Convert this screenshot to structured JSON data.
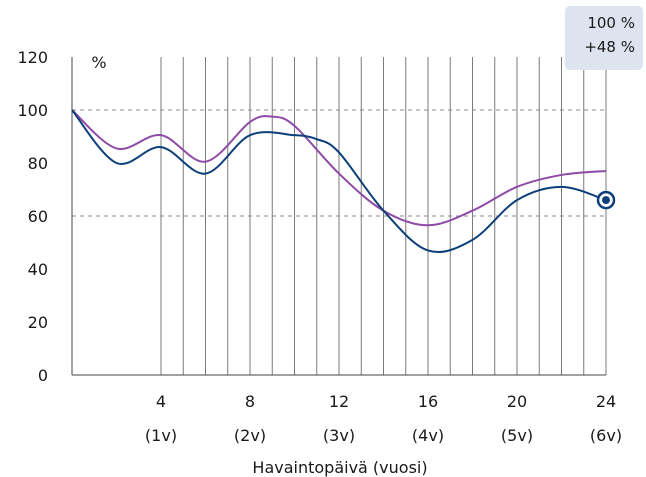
{
  "chart_data": {
    "type": "line",
    "ylabel": "%",
    "xlabel": "Havaintopäivä (vuosi)",
    "ylim": [
      0,
      120
    ],
    "xlim": [
      0,
      24
    ],
    "y_ticks": [
      "0",
      "20",
      "40",
      "60",
      "80",
      "100",
      "120"
    ],
    "x_ticks": [
      {
        "value": 4,
        "label": "4",
        "sublabel": "(1v)"
      },
      {
        "value": 8,
        "label": "8",
        "sublabel": "(2v)"
      },
      {
        "value": 12,
        "label": "12",
        "sublabel": "(3v)"
      },
      {
        "value": 16,
        "label": "16",
        "sublabel": "(4v)"
      },
      {
        "value": 20,
        "label": "20",
        "sublabel": "(5v)"
      },
      {
        "value": 24,
        "label": "24",
        "sublabel": "(6v)"
      }
    ],
    "reference_lines": [
      60,
      100
    ],
    "vertical_grid_x": [
      4,
      5,
      6,
      7,
      8,
      9,
      10,
      11,
      12,
      13,
      14,
      15,
      16,
      17,
      18,
      19,
      20,
      21,
      22,
      23,
      24
    ],
    "series": [
      {
        "color": "#0d3f7a",
        "x": [
          0,
          2,
          4,
          6,
          8,
          10,
          11,
          12,
          14,
          16,
          18,
          20,
          22,
          24
        ],
        "y": [
          100,
          80,
          86,
          76,
          90.5,
          90.5,
          89,
          84,
          62,
          47,
          51,
          66,
          71,
          66
        ]
      },
      {
        "color": "#8e4aa6",
        "x": [
          0,
          2,
          4,
          6,
          8,
          9,
          10,
          12,
          14,
          16,
          18,
          20,
          22,
          24
        ],
        "y": [
          100,
          85.5,
          90.5,
          80.5,
          95.5,
          97.5,
          94,
          76,
          62,
          56.5,
          62,
          71,
          75.5,
          77
        ]
      }
    ],
    "highlight": {
      "x": 24,
      "y": 66,
      "color": "#0d3f7a"
    }
  },
  "tooltip": {
    "line1": "100 %",
    "line2": "+48 %"
  }
}
